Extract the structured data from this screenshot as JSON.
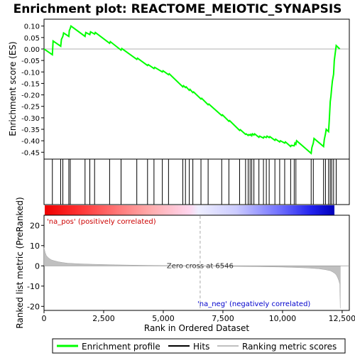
{
  "chart_data": {
    "type": "line",
    "title": "Enrichment plot: REACTOME_MEIOTIC_SYNAPSIS",
    "top_panel": {
      "ylabel": "Enrichment score (ES)",
      "ylim": [
        -0.48,
        0.13
      ],
      "yticks": [
        0.1,
        0.05,
        0.0,
        -0.05,
        -0.1,
        -0.15,
        -0.2,
        -0.25,
        -0.3,
        -0.35,
        -0.4,
        -0.45
      ],
      "ytick_labels": [
        "0.10",
        "0.05",
        "0.00",
        "-0.05",
        "-0.10",
        "-0.15",
        "-0.20",
        "-0.25",
        "-0.30",
        "-0.35",
        "-0.40",
        "-0.45"
      ],
      "series": [
        {
          "name": "Enrichment profile",
          "color": "#00ff00",
          "x": [
            0,
            350,
            380,
            700,
            730,
            790,
            820,
            1040,
            1060,
            1100,
            1130,
            1720,
            1750,
            1920,
            1950,
            2120,
            2150,
            2750,
            2780,
            3230,
            3260,
            3890,
            3920,
            4340,
            4370,
            4610,
            4640,
            4960,
            4990,
            5220,
            5250,
            5820,
            5850,
            5930,
            5960,
            6090,
            6120,
            6240,
            6270,
            6580,
            6610,
            6880,
            6910,
            7450,
            7480,
            7750,
            7780,
            8200,
            8230,
            8450,
            8480,
            8560,
            8590,
            8640,
            8670,
            8710,
            8740,
            8800,
            8830,
            9010,
            9040,
            9200,
            9230,
            9320,
            9350,
            9440,
            9470,
            9680,
            9710,
            9880,
            9910,
            10090,
            10120,
            10340,
            10370,
            10490,
            10520,
            10560,
            10590,
            11200,
            11230,
            11290,
            11320,
            11720,
            11750,
            11800,
            11830,
            11930,
            11960,
            12000,
            12030,
            12060,
            12090,
            12140,
            12170,
            12250,
            12400
          ],
          "y": [
            0.0,
            -0.025,
            0.035,
            0.012,
            0.042,
            0.055,
            0.07,
            0.055,
            0.08,
            0.09,
            0.1,
            0.055,
            0.072,
            0.063,
            0.075,
            0.065,
            0.072,
            0.025,
            0.032,
            -0.005,
            0.002,
            -0.045,
            -0.04,
            -0.072,
            -0.068,
            -0.085,
            -0.08,
            -0.1,
            -0.095,
            -0.112,
            -0.108,
            -0.165,
            -0.16,
            -0.168,
            -0.165,
            -0.18,
            -0.176,
            -0.19,
            -0.187,
            -0.218,
            -0.215,
            -0.243,
            -0.24,
            -0.29,
            -0.287,
            -0.315,
            -0.312,
            -0.355,
            -0.352,
            -0.372,
            -0.37,
            -0.377,
            -0.373,
            -0.376,
            -0.372,
            -0.378,
            -0.37,
            -0.375,
            -0.37,
            -0.385,
            -0.38,
            -0.388,
            -0.382,
            -0.386,
            -0.38,
            -0.386,
            -0.382,
            -0.398,
            -0.393,
            -0.405,
            -0.4,
            -0.41,
            -0.405,
            -0.425,
            -0.42,
            -0.422,
            -0.41,
            -0.415,
            -0.4,
            -0.455,
            -0.43,
            -0.41,
            -0.39,
            -0.425,
            -0.395,
            -0.37,
            -0.35,
            -0.36,
            -0.31,
            -0.23,
            -0.205,
            -0.17,
            -0.14,
            -0.11,
            -0.05,
            0.015,
            0.0
          ]
        }
      ]
    },
    "hits": [
      350,
      700,
      790,
      1040,
      1100,
      1720,
      1920,
      2120,
      2750,
      3230,
      3890,
      4340,
      4610,
      4960,
      5220,
      5820,
      5930,
      6090,
      6240,
      6580,
      6880,
      7450,
      7750,
      8200,
      8450,
      8560,
      8640,
      8710,
      8800,
      9010,
      9200,
      9320,
      9440,
      9680,
      9880,
      10090,
      10340,
      10490,
      10560,
      11200,
      11290,
      11720,
      11800,
      11930,
      12000,
      12060,
      12140,
      12250
    ],
    "bottom_panel": {
      "xlabel": "Rank in Ordered Dataset",
      "ylabel": "Ranked list metric (PreRanked)",
      "xlim": [
        0,
        12800
      ],
      "xticks": [
        0,
        2500,
        5000,
        7500,
        10000,
        12500
      ],
      "xtick_labels": [
        "0",
        "2,500",
        "5,000",
        "7,500",
        "10,000",
        "12,500"
      ],
      "ylim": [
        -22,
        25
      ],
      "yticks": [
        20,
        10,
        0,
        -10,
        -20
      ],
      "ytick_labels": [
        "20",
        "10",
        "0",
        "-10",
        "-20"
      ],
      "metric": {
        "x": [
          0,
          50,
          100,
          200,
          300,
          400,
          600,
          800,
          1000,
          1500,
          2000,
          3000,
          4000,
          5000,
          6000,
          6546,
          7000,
          8000,
          9000,
          10000,
          10500,
          11000,
          11500,
          11800,
          12000,
          12100,
          12200,
          12250,
          12300,
          12350,
          12400,
          12420
        ],
        "y": [
          9,
          6.5,
          5,
          3.8,
          3,
          2.6,
          2,
          1.6,
          1.3,
          1.0,
          0.8,
          0.5,
          0.3,
          0.15,
          0.05,
          0,
          -0.1,
          -0.25,
          -0.4,
          -0.6,
          -0.8,
          -1.0,
          -1.4,
          -1.9,
          -2.4,
          -3.0,
          -3.8,
          -4.5,
          -5.5,
          -7.0,
          -9.0,
          -21
        ]
      },
      "zero_cross_label": "Zero cross at 6546",
      "zero_cross": 6546,
      "pos_label": "'na_pos' (positively correlated)",
      "neg_label": "'na_neg' (negatively correlated)"
    },
    "legend": [
      "Enrichment profile",
      "Hits",
      "Ranking metric scores"
    ],
    "colors": {
      "profile": "#00ff00",
      "hits": "#000000",
      "metric": "#c0c0c0",
      "pos_label": "#cc0000",
      "neg_label": "#0000cc"
    }
  }
}
